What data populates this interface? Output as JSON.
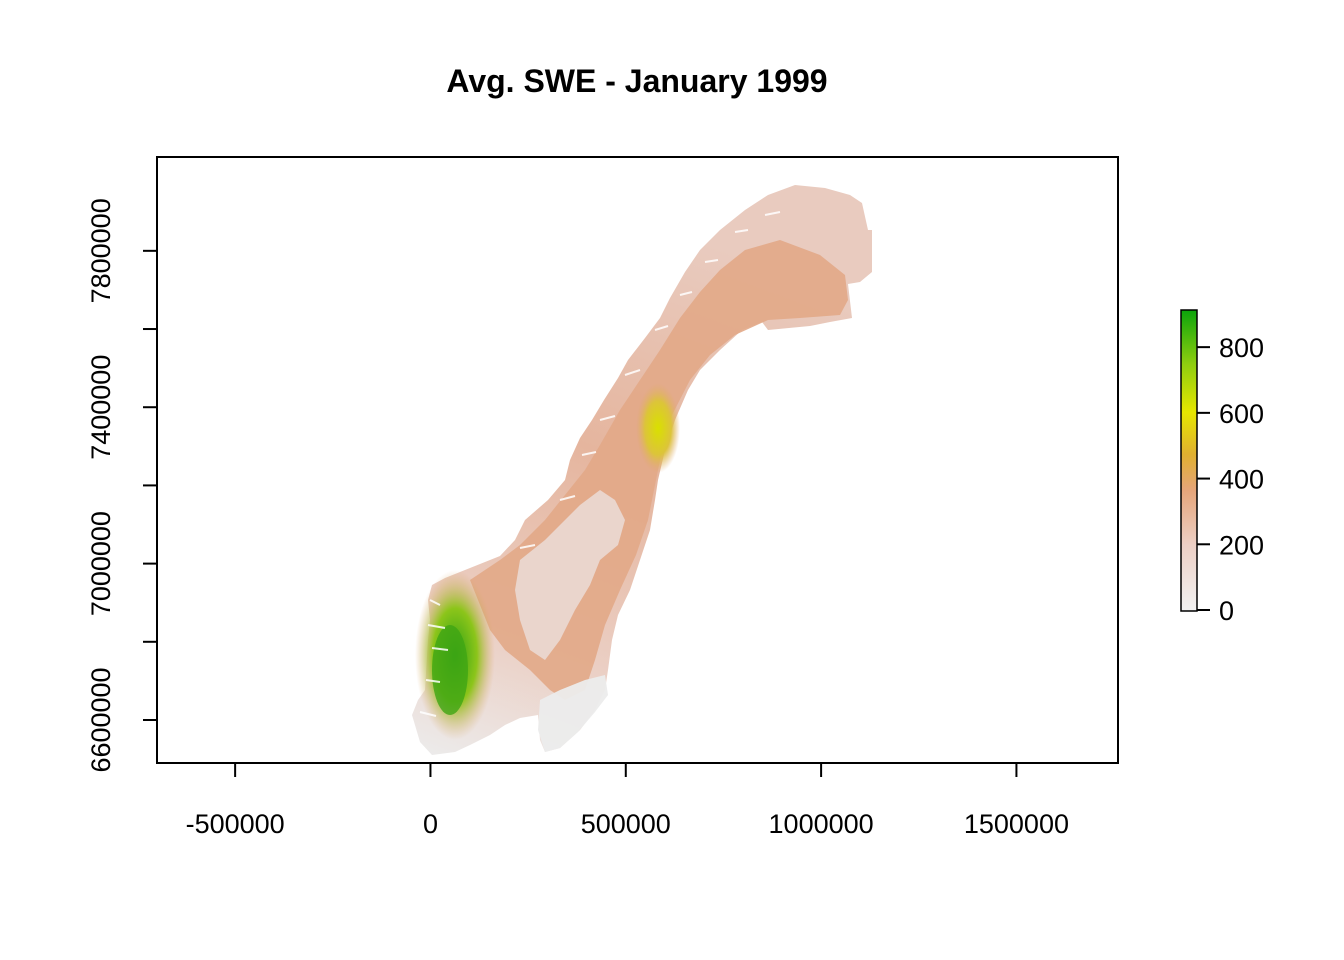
{
  "title": "Avg. SWE - January 1999",
  "x_axis": {
    "ticks": [
      -500000,
      0,
      500000,
      1000000,
      1500000
    ],
    "labels": [
      "-500000",
      "0",
      "500000",
      "1000000",
      "1500000"
    ],
    "range": [
      -700000,
      1760000
    ]
  },
  "y_axis": {
    "ticks": [
      6600000,
      7000000,
      7400000,
      7800000
    ],
    "labels": [
      "6600000",
      "7000000",
      "7400000",
      "7800000"
    ],
    "minor_ticks": [
      6800000,
      7200000,
      7600000
    ],
    "range": [
      6490000,
      8040000
    ]
  },
  "legend": {
    "ticks": [
      0,
      200,
      400,
      600,
      800
    ],
    "labels": [
      "0",
      "200",
      "400",
      "600",
      "800"
    ],
    "range": [
      0,
      910
    ],
    "colors": [
      "#f2f2f2",
      "#eccfc5",
      "#e6a57a",
      "#e0b030",
      "#e6e600",
      "#8fce0f",
      "#0ba40b"
    ]
  },
  "colors": {
    "low": "#f0e0dc",
    "mid": "#e3ab8b",
    "high": "#5fbd1a",
    "peak": "#d6d90c"
  }
}
